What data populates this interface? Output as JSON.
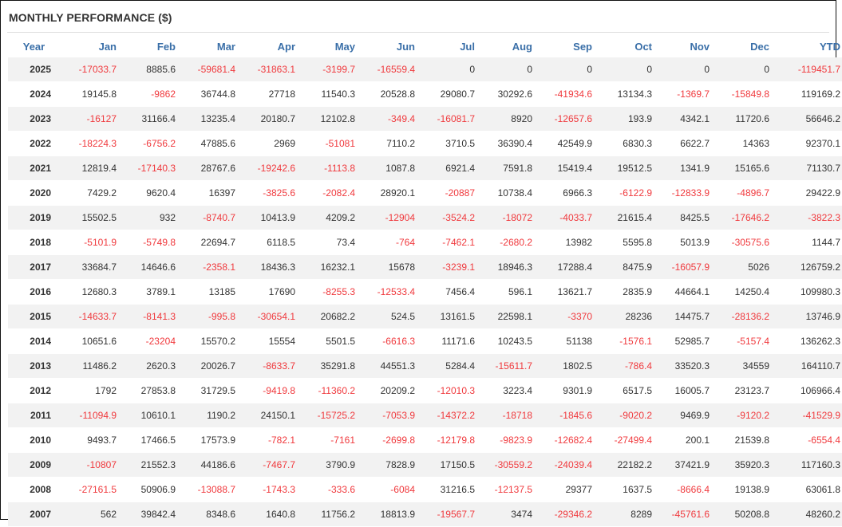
{
  "title": "MONTHLY PERFORMANCE ($)",
  "colors": {
    "header": "#3a6fa8",
    "negative": "#f0393d",
    "text": "#333333",
    "stripe": "#f2f2f2"
  },
  "chart_data": {
    "type": "table",
    "title": "MONTHLY PERFORMANCE ($)",
    "columns": [
      "Year",
      "Jan",
      "Feb",
      "Mar",
      "Apr",
      "May",
      "Jun",
      "Jul",
      "Aug",
      "Sep",
      "Oct",
      "Nov",
      "Dec",
      "YTD"
    ],
    "rows": [
      [
        "2025",
        "-17033.7",
        "8885.6",
        "-59681.4",
        "-31863.1",
        "-3199.7",
        "-16559.4",
        "0",
        "0",
        "0",
        "0",
        "0",
        "0",
        "-119451.7"
      ],
      [
        "2024",
        "19145.8",
        "-9862",
        "36744.8",
        "27718",
        "11540.3",
        "20528.8",
        "29080.7",
        "30292.6",
        "-41934.6",
        "13134.3",
        "-1369.7",
        "-15849.8",
        "119169.2"
      ],
      [
        "2023",
        "-16127",
        "31166.4",
        "13235.4",
        "20180.7",
        "12102.8",
        "-349.4",
        "-16081.7",
        "8920",
        "-12657.6",
        "193.9",
        "4342.1",
        "11720.6",
        "56646.2"
      ],
      [
        "2022",
        "-18224.3",
        "-6756.2",
        "47885.6",
        "2969",
        "-51081",
        "7110.2",
        "3710.5",
        "36390.4",
        "42549.9",
        "6830.3",
        "6622.7",
        "14363",
        "92370.1"
      ],
      [
        "2021",
        "12819.4",
        "-17140.3",
        "28767.6",
        "-19242.6",
        "-1113.8",
        "1087.8",
        "6921.4",
        "7591.8",
        "15419.4",
        "19512.5",
        "1341.9",
        "15165.6",
        "71130.7"
      ],
      [
        "2020",
        "7429.2",
        "9620.4",
        "16397",
        "-3825.6",
        "-2082.4",
        "28920.1",
        "-20887",
        "10738.4",
        "6966.3",
        "-6122.9",
        "-12833.9",
        "-4896.7",
        "29422.9"
      ],
      [
        "2019",
        "15502.5",
        "932",
        "-8740.7",
        "10413.9",
        "4209.2",
        "-12904",
        "-3524.2",
        "-18072",
        "-4033.7",
        "21615.4",
        "8425.5",
        "-17646.2",
        "-3822.3"
      ],
      [
        "2018",
        "-5101.9",
        "-5749.8",
        "22694.7",
        "6118.5",
        "73.4",
        "-764",
        "-7462.1",
        "-2680.2",
        "13982",
        "5595.8",
        "5013.9",
        "-30575.6",
        "1144.7"
      ],
      [
        "2017",
        "33684.7",
        "14646.6",
        "-2358.1",
        "18436.3",
        "16232.1",
        "15678",
        "-3239.1",
        "18946.3",
        "17288.4",
        "8475.9",
        "-16057.9",
        "5026",
        "126759.2"
      ],
      [
        "2016",
        "12680.3",
        "3789.1",
        "13185",
        "17690",
        "-8255.3",
        "-12533.4",
        "7456.4",
        "596.1",
        "13621.7",
        "2835.9",
        "44664.1",
        "14250.4",
        "109980.3"
      ],
      [
        "2015",
        "-14633.7",
        "-8141.3",
        "-995.8",
        "-30654.1",
        "20682.2",
        "524.5",
        "13161.5",
        "22598.1",
        "-3370",
        "28236",
        "14475.7",
        "-28136.2",
        "13746.9"
      ],
      [
        "2014",
        "10651.6",
        "-23204",
        "15570.2",
        "15554",
        "5501.5",
        "-6616.3",
        "11171.6",
        "10243.5",
        "51138",
        "-1576.1",
        "52985.7",
        "-5157.4",
        "136262.3"
      ],
      [
        "2013",
        "11486.2",
        "2620.3",
        "20026.7",
        "-8633.7",
        "35291.8",
        "44551.3",
        "5284.4",
        "-15611.7",
        "1802.5",
        "-786.4",
        "33520.3",
        "34559",
        "164110.7"
      ],
      [
        "2012",
        "1792",
        "27853.8",
        "31729.5",
        "-9419.8",
        "-11360.2",
        "20209.2",
        "-12010.3",
        "3223.4",
        "9301.9",
        "6517.5",
        "16005.7",
        "23123.7",
        "106966.4"
      ],
      [
        "2011",
        "-11094.9",
        "10610.1",
        "1190.2",
        "24150.1",
        "-15725.2",
        "-7053.9",
        "-14372.2",
        "-18718",
        "-1845.6",
        "-9020.2",
        "9469.9",
        "-9120.2",
        "-41529.9"
      ],
      [
        "2010",
        "9493.7",
        "17466.5",
        "17573.9",
        "-782.1",
        "-7161",
        "-2699.8",
        "-12179.8",
        "-9823.9",
        "-12682.4",
        "-27499.4",
        "200.1",
        "21539.8",
        "-6554.4"
      ],
      [
        "2009",
        "-10807",
        "21552.3",
        "44186.6",
        "-7467.7",
        "3790.9",
        "7828.9",
        "17150.5",
        "-30559.2",
        "-24039.4",
        "22182.2",
        "37421.9",
        "35920.3",
        "117160.3"
      ],
      [
        "2008",
        "-27161.5",
        "50906.9",
        "-13088.7",
        "-1743.3",
        "-333.6",
        "-6084",
        "31216.5",
        "-12137.5",
        "29377",
        "1637.5",
        "-8666.4",
        "19138.9",
        "63061.8"
      ],
      [
        "2007",
        "562",
        "39842.4",
        "8348.6",
        "1640.8",
        "11756.2",
        "18813.9",
        "-19567.7",
        "3474",
        "-29346.2",
        "8289",
        "-45761.6",
        "50208.8",
        "48260.2"
      ]
    ]
  }
}
